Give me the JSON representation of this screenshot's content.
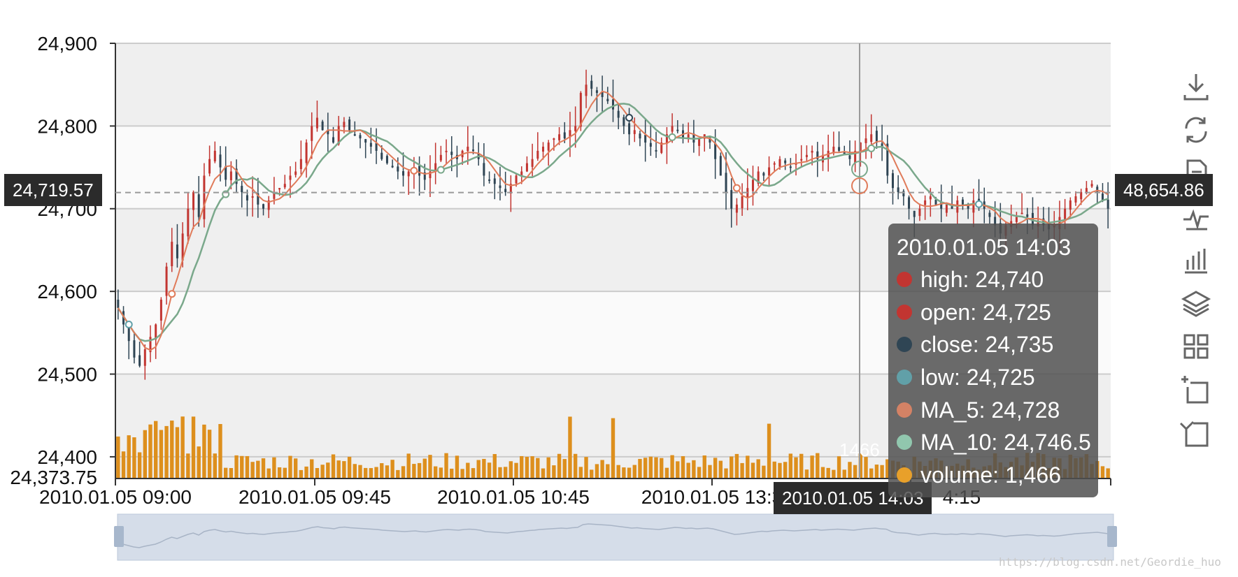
{
  "chart_data": {
    "type": "candlestick",
    "ylim": [
      24373.75,
      24900
    ],
    "y_ticks": [
      "24,900",
      "24,800",
      "24,700",
      "24,600",
      "24,500",
      "24,400"
    ],
    "y_min_label": "24,373.75",
    "x_tick_labels": [
      "2010.01.05 09:00",
      "2010.01.05 09:45",
      "2010.01.05 10:45",
      "2010.01.05 13:3",
      "4:15"
    ],
    "series": [
      {
        "name": "close",
        "values": [
          24580,
          24560,
          24540,
          24520,
          24510,
          24530,
          24545,
          24560,
          24590,
          24630,
          24660,
          24640,
          24670,
          24700,
          24720,
          24690,
          24740,
          24760,
          24770,
          24750,
          24735,
          24745,
          24730,
          24720,
          24710,
          24715,
          24705,
          24700,
          24710,
          24720,
          24725,
          24730,
          24740,
          24745,
          24760,
          24780,
          24800,
          24810,
          24795,
          24790,
          24780,
          24800,
          24805,
          24795,
          24790,
          24785,
          24780,
          24775,
          24770,
          24760,
          24755,
          24750,
          24745,
          24740,
          24745,
          24750,
          24740,
          24735,
          24745,
          24755,
          24765,
          24770,
          24765,
          24760,
          24770,
          24775,
          24770,
          24760,
          24740,
          24735,
          24730,
          24725,
          24720,
          24730,
          24740,
          24745,
          24755,
          24760,
          24770,
          24775,
          24780,
          24785,
          24790,
          24785,
          24795,
          24800,
          24840,
          24850,
          24845,
          24840,
          24835,
          24830,
          24820,
          24810,
          24800,
          24790,
          24795,
          24785,
          24780,
          24775,
          24770,
          24780,
          24790,
          24800,
          24795,
          24785,
          24790,
          24780,
          24785,
          24790,
          24780,
          24760,
          24740,
          24720,
          24700,
          24705,
          24715,
          24725,
          24735,
          24745,
          24740,
          24750,
          24755,
          24760,
          24755,
          24750,
          24755,
          24760,
          24765,
          24770,
          24760,
          24765,
          24770,
          24775,
          24770,
          24765,
          24760,
          24770,
          24780,
          24785,
          24790,
          24780,
          24775,
          24740,
          24725,
          24720,
          24715,
          24700,
          24690,
          24700,
          24710,
          24715,
          24705,
          24700,
          24705,
          24700,
          24710,
          24705,
          24700,
          24710,
          24705,
          24700,
          24690,
          24680,
          24670,
          24680,
          24685,
          24690,
          24695,
          24690,
          24680,
          24685,
          24680,
          24675,
          24680,
          24690,
          24700,
          24710,
          24715,
          24720,
          24725,
          24730,
          24720,
          24710,
          24700
        ]
      },
      {
        "name": "MA_5",
        "values": []
      },
      {
        "name": "MA_10",
        "values": []
      },
      {
        "name": "volume",
        "values": []
      }
    ],
    "crosshair": {
      "y_label": "24,719.57",
      "y_value": 24719.57,
      "right_label": "48,654.86",
      "x_label": "2010.01.05 14:03",
      "volume_label": "1466"
    },
    "tooltip": {
      "title": "2010.01.05 14:03",
      "rows": [
        {
          "label": "high: 24,740",
          "color": "#c23531"
        },
        {
          "label": "open: 24,725",
          "color": "#c23531"
        },
        {
          "label": "close: 24,735",
          "color": "#2f4554"
        },
        {
          "label": "low: 24,725",
          "color": "#61a0a8"
        },
        {
          "label": "MA_5: 24,728",
          "color": "#d48265"
        },
        {
          "label": "MA_10: 24,746.5",
          "color": "#91c7ae"
        },
        {
          "label": "volume: 1,466",
          "color": "#e8a02a"
        }
      ]
    },
    "colors": {
      "up": "#c23531",
      "down": "#2f4554",
      "ma5": "#e07b5a",
      "ma10": "#7aa88b",
      "volume": "#dd8f1d",
      "band": "#efefef",
      "slider": "#d5dde9"
    }
  },
  "toolbar": [
    "download-icon",
    "refresh-icon",
    "data-view-icon",
    "line-chart-icon",
    "bar-chart-icon",
    "stack-icon",
    "tiled-icon",
    "zoom-icon",
    "zoom-reset-icon"
  ],
  "watermark": "https://blog.csdn.net/Geordie_huo"
}
